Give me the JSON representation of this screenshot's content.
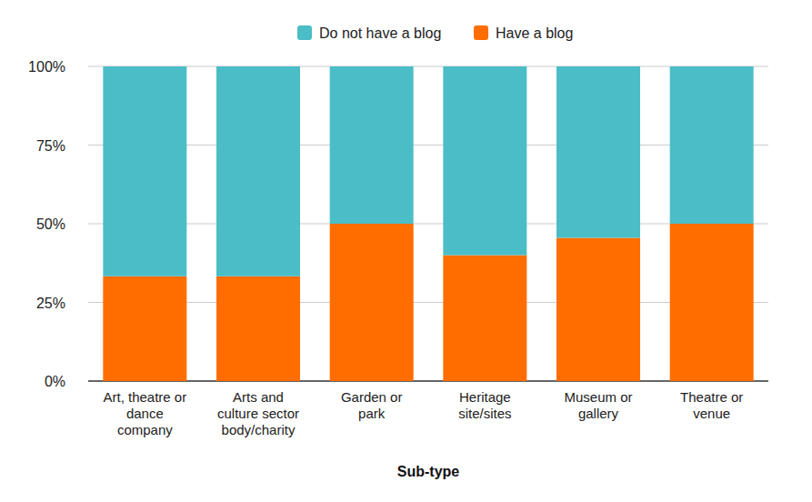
{
  "chart_data": {
    "type": "bar",
    "stacked": true,
    "x_label": "Sub-type",
    "categories": [
      "Art, theatre or dance company",
      "Arts and culture sector body/charity",
      "Garden or park",
      "Heritage site/sites",
      "Museum or gallery",
      "Theatre or venue"
    ],
    "series": [
      {
        "name": "Have a blog",
        "color": "#ff6d01",
        "values": [
          33.3,
          33.3,
          50,
          40,
          45.5,
          50
        ]
      },
      {
        "name": "Do not have a blog",
        "color": "#4bbdc7",
        "values": [
          66.7,
          66.7,
          50,
          60,
          54.5,
          50
        ]
      }
    ],
    "ylim": [
      0,
      100
    ],
    "yticks": [
      {
        "value": 0,
        "label": "0%"
      },
      {
        "value": 25,
        "label": "25%"
      },
      {
        "value": 50,
        "label": "50%"
      },
      {
        "value": 75,
        "label": "75%"
      },
      {
        "value": 100,
        "label": "100%"
      }
    ],
    "grid": true,
    "legend": "top"
  }
}
